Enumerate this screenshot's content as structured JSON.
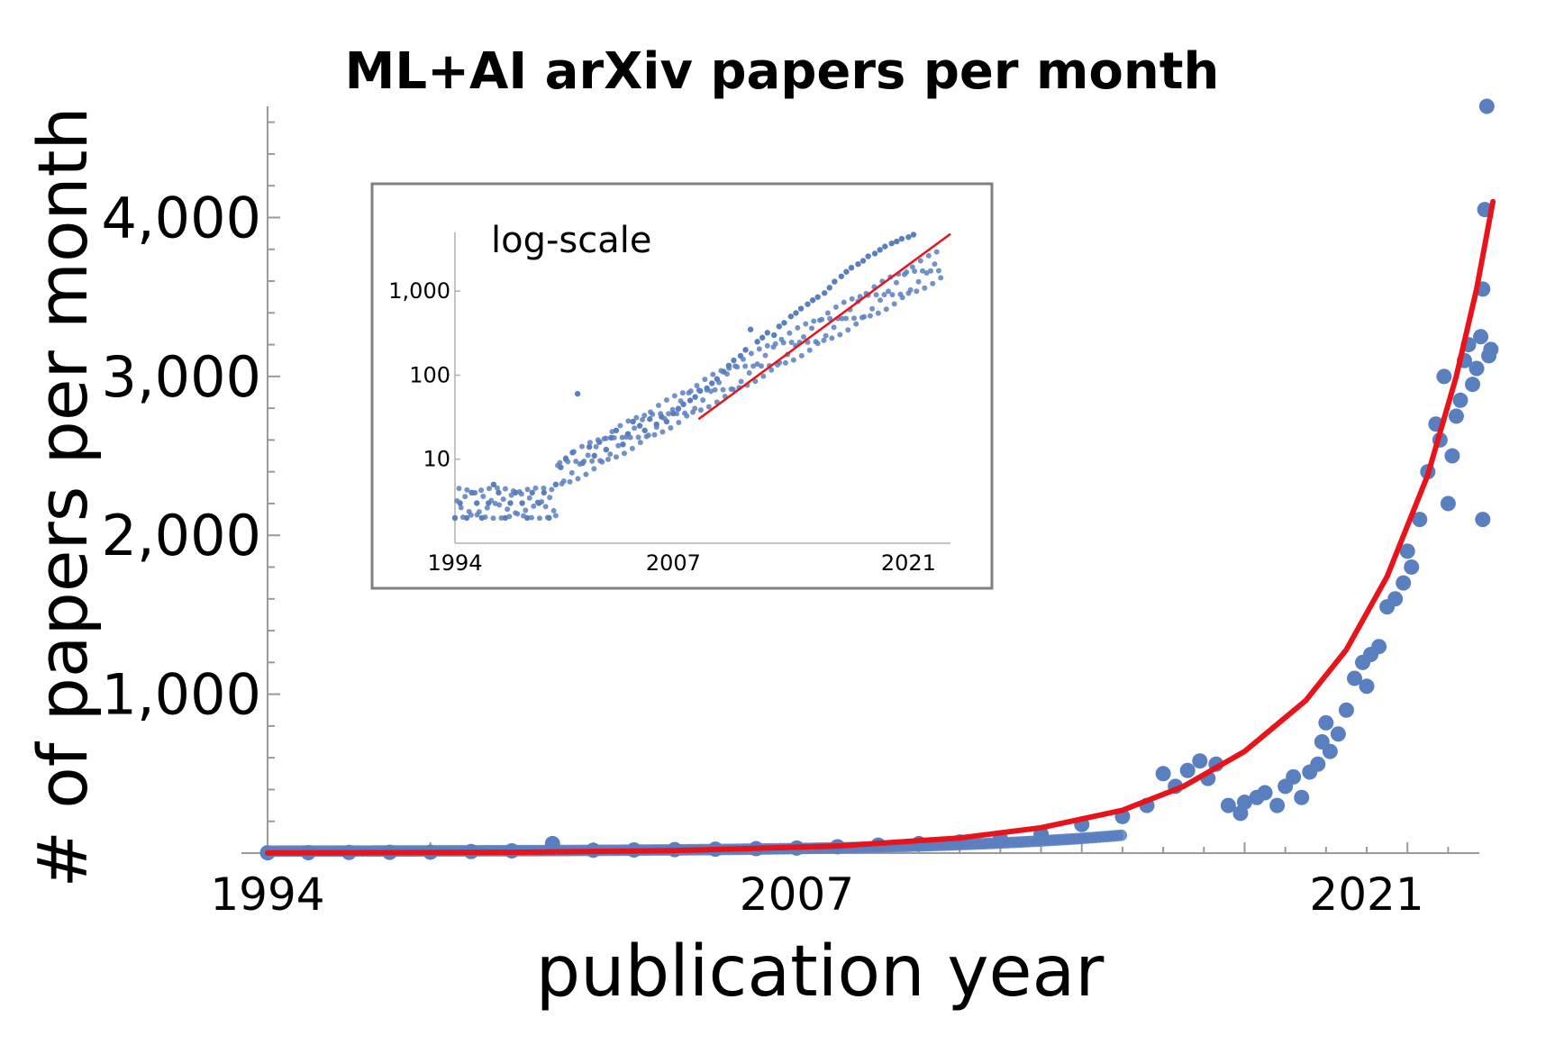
{
  "chart_data": [
    {
      "type": "scatter",
      "title": "ML+AI arXiv papers per month",
      "xlabel": "publication year",
      "ylabel": "# of papers per month",
      "x_ticks": [
        "1994",
        "2007",
        "2021"
      ],
      "y_ticks": [
        "1,000",
        "2,000",
        "3,000",
        "4,000"
      ],
      "xlim": [
        1994,
        2023.5
      ],
      "ylim": [
        0,
        4700
      ],
      "grid": false,
      "legend": "none",
      "marker_color": "#5a7fbf",
      "fit_color": "#e8141c",
      "series": [
        {
          "values": [
            [
              1994.0,
              2
            ],
            [
              1995.0,
              3
            ],
            [
              1996.0,
              4
            ],
            [
              1997.0,
              5
            ],
            [
              1998.0,
              6
            ],
            [
              1999.0,
              10
            ],
            [
              2000.0,
              14
            ],
            [
              2001.0,
              60
            ],
            [
              2002.0,
              18
            ],
            [
              2003.0,
              20
            ],
            [
              2004.0,
              22
            ],
            [
              2005.0,
              25
            ],
            [
              2006.0,
              28
            ],
            [
              2007.0,
              32
            ],
            [
              2008.0,
              40
            ],
            [
              2009.0,
              50
            ],
            [
              2010.0,
              60
            ],
            [
              2011.0,
              70
            ],
            [
              2012.0,
              90
            ],
            [
              2013.0,
              120
            ],
            [
              2014.0,
              180
            ],
            [
              2015.0,
              230
            ],
            [
              2015.6,
              300
            ],
            [
              2016.0,
              500
            ],
            [
              2016.3,
              420
            ],
            [
              2016.6,
              520
            ],
            [
              2016.9,
              580
            ],
            [
              2017.1,
              470
            ],
            [
              2017.3,
              560
            ],
            [
              2017.6,
              300
            ],
            [
              2017.9,
              250
            ],
            [
              2018.0,
              320
            ],
            [
              2018.3,
              350
            ],
            [
              2018.5,
              380
            ],
            [
              2018.8,
              300
            ],
            [
              2019.0,
              420
            ],
            [
              2019.2,
              480
            ],
            [
              2019.4,
              350
            ],
            [
              2019.6,
              510
            ],
            [
              2019.8,
              560
            ],
            [
              2019.9,
              700
            ],
            [
              2020.0,
              820
            ],
            [
              2020.1,
              640
            ],
            [
              2020.3,
              750
            ],
            [
              2020.5,
              900
            ],
            [
              2020.7,
              1100
            ],
            [
              2020.9,
              1200
            ],
            [
              2021.0,
              1050
            ],
            [
              2021.1,
              1250
            ],
            [
              2021.3,
              1300
            ],
            [
              2021.5,
              1550
            ],
            [
              2021.7,
              1600
            ],
            [
              2021.9,
              1700
            ],
            [
              2022.0,
              1900
            ],
            [
              2022.1,
              1800
            ],
            [
              2022.3,
              2100
            ],
            [
              2022.5,
              2400
            ],
            [
              2022.7,
              2700
            ],
            [
              2022.8,
              2600
            ],
            [
              2022.9,
              3000
            ],
            [
              2023.0,
              2200
            ],
            [
              2023.1,
              2500
            ],
            [
              2023.2,
              2750
            ],
            [
              2023.3,
              2850
            ],
            [
              2023.4,
              3100
            ],
            [
              2023.5,
              3200
            ],
            [
              2023.6,
              2950
            ],
            [
              2023.7,
              3050
            ],
            [
              2023.8,
              3250
            ],
            [
              2023.85,
              2100
            ],
            [
              2023.9,
              4050
            ],
            [
              2024.0,
              3130
            ],
            [
              2024.05,
              3170
            ],
            [
              2023.95,
              4700
            ],
            [
              2023.85,
              3550
            ]
          ]
        },
        {
          "name": "fit",
          "type": "line",
          "values": [
            [
              1994,
              1
            ],
            [
              2000,
              5
            ],
            [
              2004,
              16
            ],
            [
              2008,
              45
            ],
            [
              2011,
              95
            ],
            [
              2013,
              160
            ],
            [
              2015,
              270
            ],
            [
              2016.5,
              420
            ],
            [
              2018,
              640
            ],
            [
              2019.5,
              960
            ],
            [
              2020.5,
              1280
            ],
            [
              2021.5,
              1740
            ],
            [
              2022.5,
              2380
            ],
            [
              2023.2,
              3000
            ],
            [
              2023.7,
              3550
            ],
            [
              2024.1,
              4100
            ]
          ]
        }
      ]
    },
    {
      "type": "scatter",
      "annotation": "log-scale",
      "x_ticks": [
        "1994",
        "2007",
        "2021"
      ],
      "y_ticks": [
        "10",
        "100",
        "1,000"
      ],
      "y_scale": "log",
      "xlim": [
        1994,
        2023.5
      ],
      "ylim": [
        1,
        5000
      ],
      "grid": false,
      "marker_color": "#5a7fbf",
      "fit_color": "#e8141c",
      "series": [
        {
          "values": [
            [
              1994.0,
              2
            ],
            [
              1994.3,
              3
            ],
            [
              1994.7,
              2
            ],
            [
              1995.0,
              4
            ],
            [
              1995.3,
              3
            ],
            [
              1995.6,
              2
            ],
            [
              1996.0,
              3
            ],
            [
              1996.3,
              5
            ],
            [
              1996.6,
              4
            ],
            [
              1997.0,
              2
            ],
            [
              1997.3,
              3
            ],
            [
              1997.6,
              4
            ],
            [
              1998.0,
              3
            ],
            [
              1998.3,
              2
            ],
            [
              1998.6,
              4
            ],
            [
              1999.0,
              3
            ],
            [
              1999.3,
              4
            ],
            [
              1999.6,
              2
            ],
            [
              2000.0,
              5
            ],
            [
              2000.3,
              8
            ],
            [
              2000.6,
              10
            ],
            [
              2001.0,
              12
            ],
            [
              2001.3,
              60
            ],
            [
              2001.6,
              9
            ],
            [
              2002.0,
              14
            ],
            [
              2002.3,
              11
            ],
            [
              2002.6,
              16
            ],
            [
              2003.0,
              13
            ],
            [
              2003.3,
              18
            ],
            [
              2003.6,
              22
            ],
            [
              2004.0,
              15
            ],
            [
              2004.3,
              20
            ],
            [
              2004.6,
              28
            ],
            [
              2005.0,
              25
            ],
            [
              2005.3,
              22
            ],
            [
              2005.6,
              30
            ],
            [
              2006.0,
              26
            ],
            [
              2006.3,
              32
            ],
            [
              2006.6,
              28
            ],
            [
              2007.0,
              35
            ],
            [
              2007.3,
              40
            ],
            [
              2007.6,
              45
            ],
            [
              2008.0,
              50
            ],
            [
              2008.3,
              55
            ],
            [
              2008.6,
              65
            ],
            [
              2009.0,
              70
            ],
            [
              2009.3,
              80
            ],
            [
              2009.6,
              90
            ],
            [
              2010.0,
              110
            ],
            [
              2010.3,
              130
            ],
            [
              2010.6,
              150
            ],
            [
              2011.0,
              170
            ],
            [
              2011.3,
              200
            ],
            [
              2011.6,
              350
            ],
            [
              2012.0,
              250
            ],
            [
              2012.3,
              280
            ],
            [
              2012.6,
              320
            ],
            [
              2013.0,
              300
            ],
            [
              2013.3,
              380
            ],
            [
              2013.6,
              420
            ],
            [
              2014.0,
              500
            ],
            [
              2014.3,
              550
            ],
            [
              2014.6,
              620
            ],
            [
              2015.0,
              700
            ],
            [
              2015.3,
              780
            ],
            [
              2015.6,
              850
            ],
            [
              2016.0,
              950
            ],
            [
              2016.3,
              1100
            ],
            [
              2016.6,
              1300
            ],
            [
              2017.0,
              1500
            ],
            [
              2017.3,
              1700
            ],
            [
              2017.6,
              1900
            ],
            [
              2018.0,
              2100
            ],
            [
              2018.3,
              2300
            ],
            [
              2018.6,
              2600
            ],
            [
              2019.0,
              2800
            ],
            [
              2019.3,
              3100
            ],
            [
              2019.6,
              3400
            ],
            [
              2020.0,
              3700
            ],
            [
              2020.3,
              3900
            ],
            [
              2020.6,
              4200
            ],
            [
              2021.0,
              4400
            ],
            [
              2021.3,
              4700
            ]
          ]
        },
        {
          "name": "fit",
          "type": "line",
          "values": [
            [
              2008.5,
              30
            ],
            [
              2023.5,
              4800
            ]
          ]
        }
      ]
    }
  ]
}
